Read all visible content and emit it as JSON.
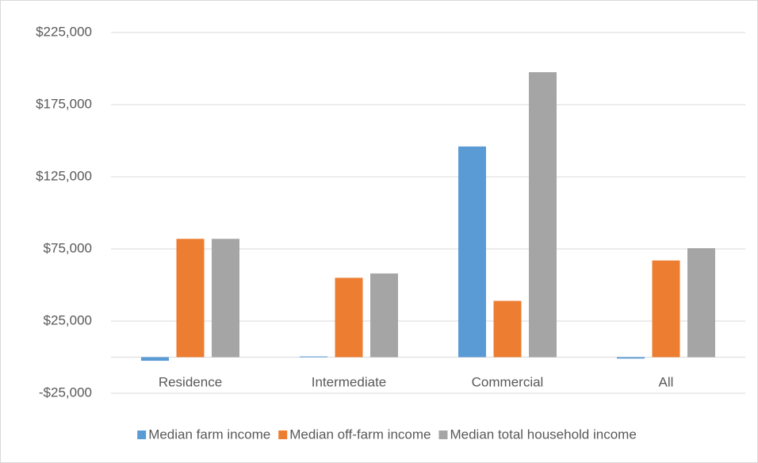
{
  "chart_data": {
    "type": "bar",
    "categories": [
      "Residence",
      "Intermediate",
      "Commercial",
      "All"
    ],
    "series": [
      {
        "name": "Median farm income",
        "color": "#5b9bd5",
        "values": [
          -2500,
          500,
          146000,
          -1000
        ]
      },
      {
        "name": "Median off-farm income",
        "color": "#ed7d31",
        "values": [
          82000,
          55000,
          39000,
          67000
        ]
      },
      {
        "name": "Median total household income",
        "color": "#a5a5a5",
        "values": [
          82000,
          58000,
          197500,
          75500
        ]
      }
    ],
    "ylim": [
      -25000,
      225000
    ],
    "yticks": [
      {
        "value": -25000,
        "label": "-$25,000"
      },
      {
        "value": 25000,
        "label": "$25,000"
      },
      {
        "value": 75000,
        "label": "$75,000"
      },
      {
        "value": 125000,
        "label": "$125,000"
      },
      {
        "value": 175000,
        "label": "$175,000"
      },
      {
        "value": 225000,
        "label": "$225,000"
      }
    ],
    "grid": true,
    "legend": "bottom"
  }
}
